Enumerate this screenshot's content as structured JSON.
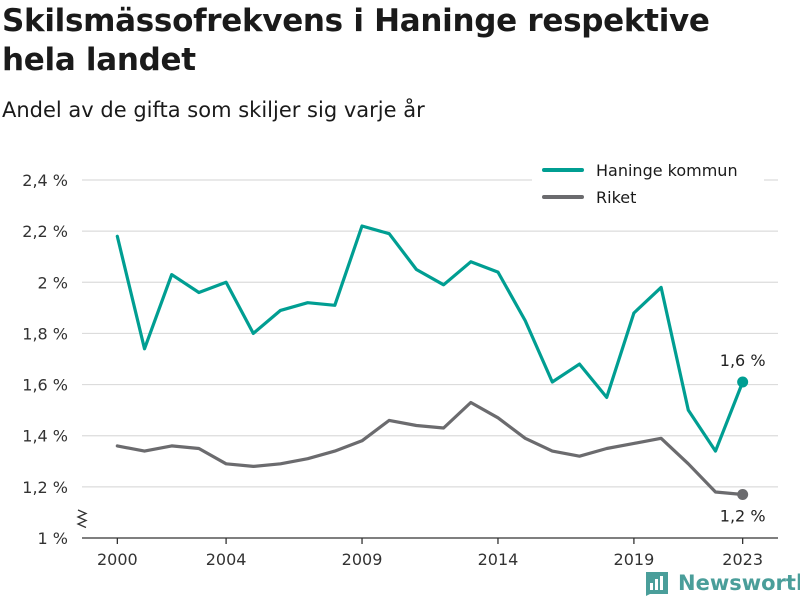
{
  "title": "Skilsmässofrekvens i Haninge respektive hela landet",
  "subtitle": "Andel av de gifta som skiljer sig varje år",
  "brand": {
    "name": "Newsworthy"
  },
  "colors": {
    "haninge": "#009e92",
    "riket": "#6b6b6e",
    "grid": "#dcdcdc",
    "axis": "#333333"
  },
  "chart_data": {
    "type": "line",
    "title": "Skilsmässofrekvens i Haninge respektive hela landet",
    "subtitle": "Andel av de gifta som skiljer sig varje år",
    "xlabel": "",
    "ylabel": "",
    "x": [
      2000,
      2001,
      2002,
      2003,
      2004,
      2005,
      2006,
      2007,
      2008,
      2009,
      2010,
      2011,
      2012,
      2013,
      2014,
      2015,
      2016,
      2017,
      2018,
      2019,
      2020,
      2021,
      2022,
      2023
    ],
    "xticks": [
      2000,
      2004,
      2009,
      2014,
      2019,
      2023
    ],
    "ylim": [
      1.0,
      2.4
    ],
    "yticks": [
      {
        "value": 1.0,
        "label": "1 %"
      },
      {
        "value": 1.2,
        "label": "1,2 %"
      },
      {
        "value": 1.4,
        "label": "1,4 %"
      },
      {
        "value": 1.6,
        "label": "1,6 %"
      },
      {
        "value": 1.8,
        "label": "1,8 %"
      },
      {
        "value": 2.0,
        "label": "2 %"
      },
      {
        "value": 2.2,
        "label": "2,2 %"
      },
      {
        "value": 2.4,
        "label": "2,4 %"
      }
    ],
    "axis_break": true,
    "grid": true,
    "legend_position": "top-right",
    "series": [
      {
        "name": "Haninge kommun",
        "color": "#009e92",
        "values": [
          2.18,
          1.74,
          2.03,
          1.96,
          2.0,
          1.8,
          1.89,
          1.92,
          1.91,
          2.22,
          2.19,
          2.05,
          1.99,
          2.08,
          2.04,
          1.85,
          1.61,
          1.68,
          1.55,
          1.88,
          1.98,
          1.5,
          1.34,
          1.61
        ],
        "end_label": "1,6 %"
      },
      {
        "name": "Riket",
        "color": "#6b6b6e",
        "values": [
          1.36,
          1.34,
          1.36,
          1.35,
          1.29,
          1.28,
          1.29,
          1.31,
          1.34,
          1.38,
          1.46,
          1.44,
          1.43,
          1.53,
          1.47,
          1.39,
          1.34,
          1.32,
          1.35,
          1.37,
          1.39,
          1.29,
          1.18,
          1.17
        ],
        "end_label": "1,2 %"
      }
    ]
  }
}
